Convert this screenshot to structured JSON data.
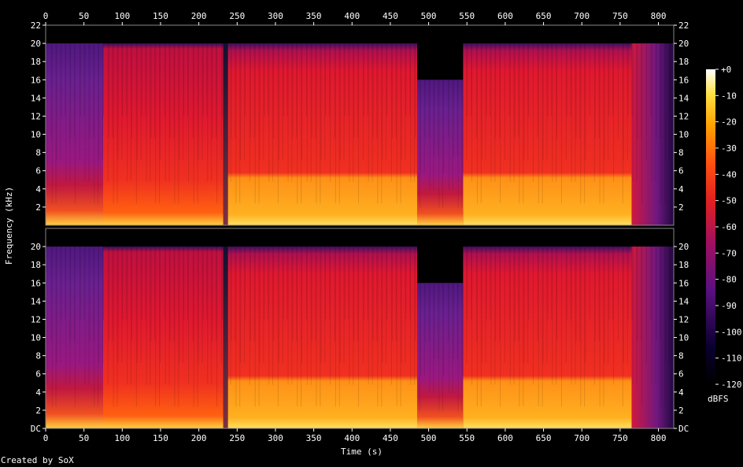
{
  "chart_data": {
    "type": "heatmap",
    "xlabel": "Time (s)",
    "ylabel": "Frequency (kHz)",
    "xlim": [
      0,
      820
    ],
    "ylim": [
      0,
      22
    ],
    "x_ticks": [
      "0",
      "50",
      "100",
      "150",
      "200",
      "250",
      "300",
      "350",
      "400",
      "450",
      "500",
      "550",
      "600",
      "650",
      "700",
      "750",
      "800"
    ],
    "y_ticks_top": [
      "2",
      "4",
      "6",
      "8",
      "10",
      "12",
      "14",
      "16",
      "18",
      "20",
      "22"
    ],
    "y_ticks_bottom": [
      "DC",
      "2",
      "4",
      "6",
      "8",
      "10",
      "12",
      "14",
      "16",
      "18",
      "20"
    ],
    "colorbar": {
      "unit": "dBFS",
      "ticks": [
        "+0",
        "-10",
        "-20",
        "-30",
        "-40",
        "-50",
        "-60",
        "-70",
        "-80",
        "-90",
        "-100",
        "-110",
        "-120"
      ],
      "range": [
        -120,
        0
      ]
    },
    "channels": 2,
    "segments": [
      {
        "start": 0,
        "end": 75,
        "cutoff_khz": 20,
        "level": "low"
      },
      {
        "start": 75,
        "end": 232,
        "cutoff_khz": 20,
        "level": "mid"
      },
      {
        "start": 232,
        "end": 238,
        "cutoff_khz": 20,
        "level": "gap"
      },
      {
        "start": 238,
        "end": 485,
        "cutoff_khz": 20,
        "level": "high"
      },
      {
        "start": 485,
        "end": 545,
        "cutoff_khz": 16,
        "level": "low"
      },
      {
        "start": 545,
        "end": 765,
        "cutoff_khz": 20,
        "level": "high"
      },
      {
        "start": 765,
        "end": 820,
        "cutoff_khz": 20,
        "level": "fade"
      }
    ],
    "credit": "Created by SoX"
  }
}
